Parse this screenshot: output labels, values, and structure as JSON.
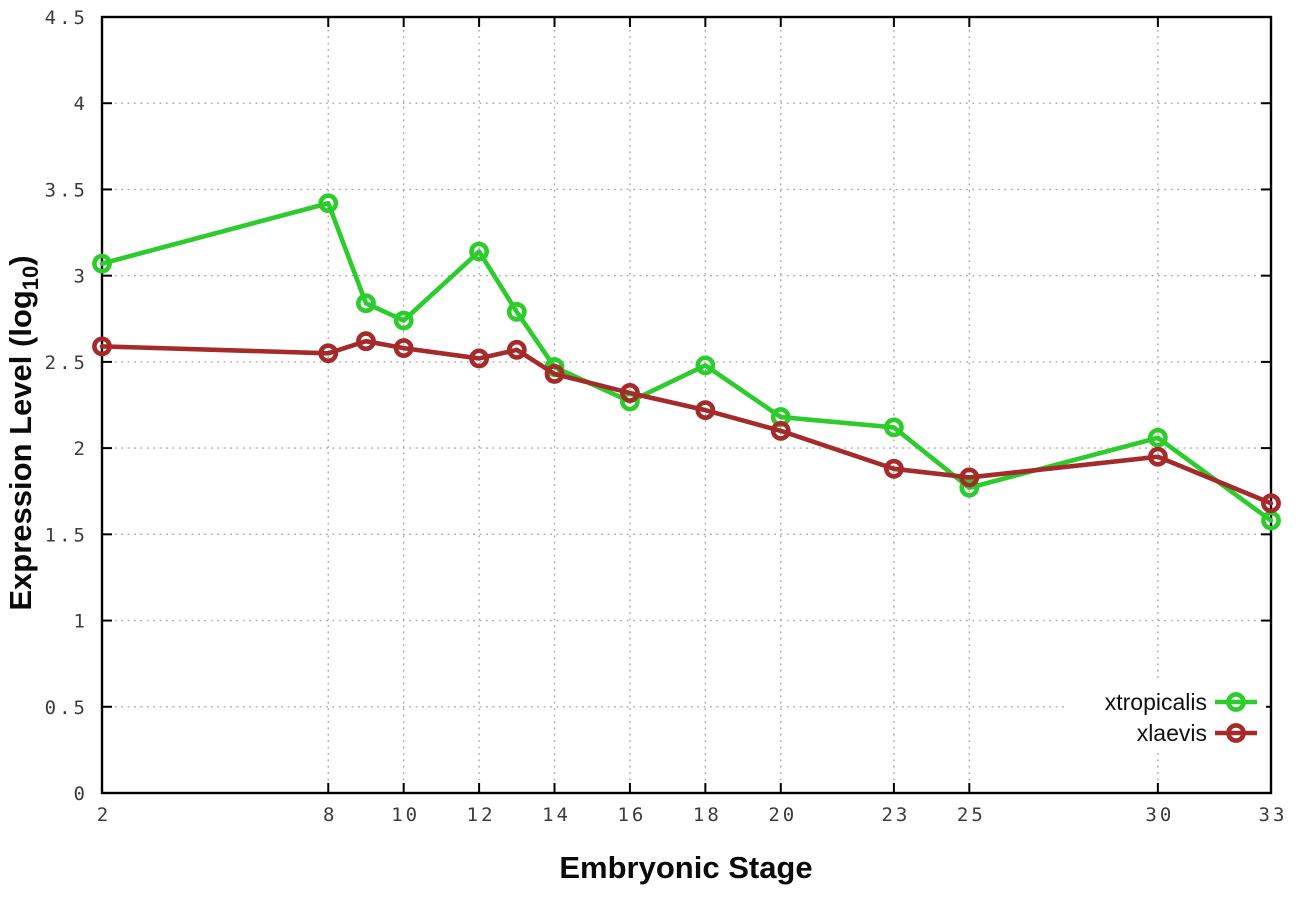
{
  "chart_data": {
    "type": "line",
    "title": "",
    "xlabel": "Embryonic Stage",
    "ylabel": "Expression Level (log10)",
    "ylabel_parts": {
      "main": "Expression Level (log",
      "sub": "10",
      "end": ")"
    },
    "xlim": [
      2,
      33
    ],
    "ylim": [
      0,
      4.5
    ],
    "grid": true,
    "legend_position": "bottom-right",
    "x": [
      2,
      8,
      9,
      10,
      12,
      13,
      14,
      16,
      18,
      20,
      23,
      25,
      30,
      33
    ],
    "xtick_labels": [
      "2",
      "8",
      "10",
      "12",
      "14",
      "16",
      "18",
      "20",
      "23",
      "25",
      "30",
      "33"
    ],
    "ytick_labels": [
      "0",
      "0.5",
      "1",
      "1.5",
      "2",
      "2.5",
      "3",
      "3.5",
      "4",
      "4.5"
    ],
    "series": [
      {
        "name": "xtropicalis",
        "color": "#2ccc2c",
        "values": [
          3.07,
          3.42,
          2.84,
          2.74,
          3.14,
          2.79,
          2.47,
          2.27,
          2.48,
          2.18,
          2.12,
          1.77,
          2.06,
          1.58
        ]
      },
      {
        "name": "xlaevis",
        "color": "#a52a2a",
        "values": [
          2.59,
          2.55,
          2.62,
          2.58,
          2.52,
          2.57,
          2.43,
          2.32,
          2.22,
          2.1,
          1.88,
          1.83,
          1.95,
          1.68
        ]
      }
    ],
    "style": {
      "grid_color": "#aaaaaa",
      "axis_color": "#000000",
      "tick_label_color": "#3c3c3c",
      "background": "#ffffff"
    }
  }
}
